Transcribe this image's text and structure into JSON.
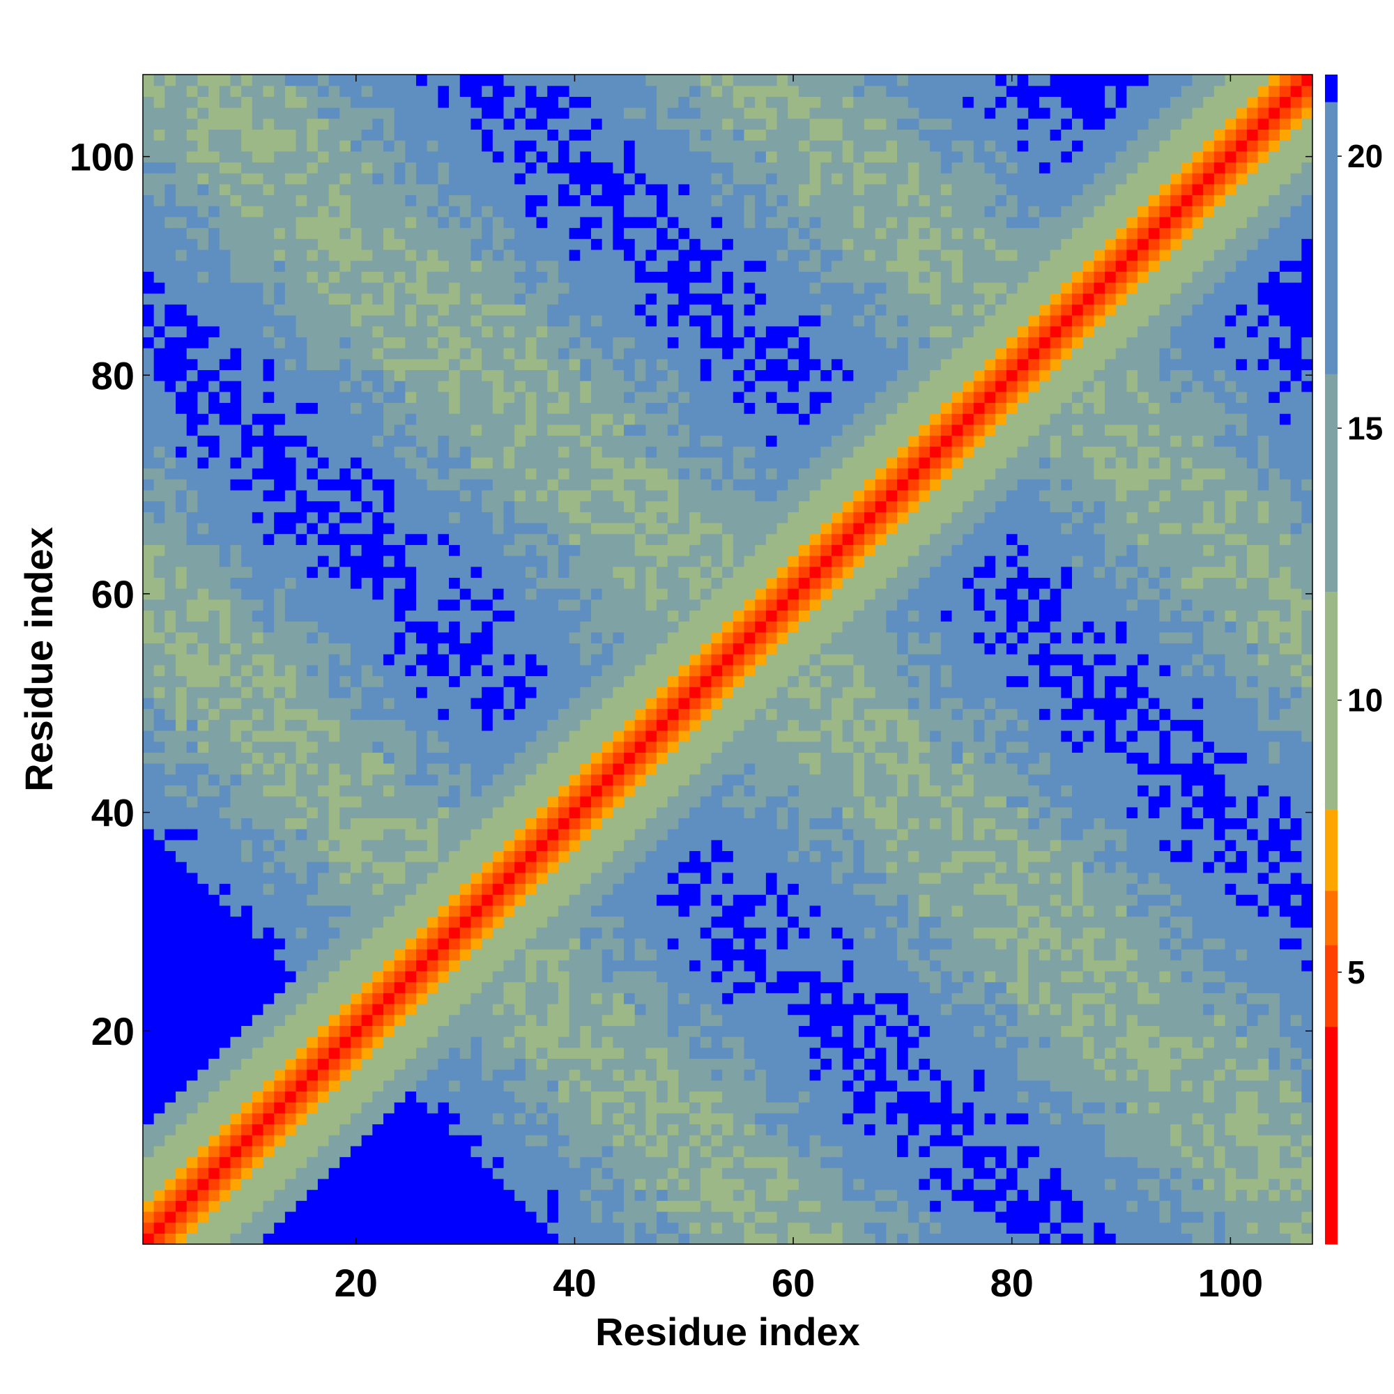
{
  "chart_data": {
    "type": "heatmap",
    "title": "",
    "xlabel": "Residue index",
    "ylabel": "Residue index",
    "n_residues": 107,
    "xlim": [
      1,
      107
    ],
    "ylim": [
      1,
      107
    ],
    "x_ticks": [
      20,
      40,
      60,
      80,
      100
    ],
    "y_ticks": [
      20,
      40,
      60,
      80,
      100
    ],
    "colorbar": {
      "range": [
        0,
        21.5
      ],
      "ticks": [
        5,
        10,
        15,
        20
      ],
      "bins": [
        {
          "min": 0,
          "max": 4,
          "color": "#ff0000"
        },
        {
          "min": 4,
          "max": 5.5,
          "color": "#ff4000"
        },
        {
          "min": 5.5,
          "max": 6.5,
          "color": "#ff7000"
        },
        {
          "min": 6.5,
          "max": 8,
          "color": "#ffa500"
        },
        {
          "min": 8,
          "max": 12,
          "color": "#9cb886"
        },
        {
          "min": 12,
          "max": 16,
          "color": "#7fa2a4"
        },
        {
          "min": 16,
          "max": 21,
          "color": "#5f8fc1"
        },
        {
          "min": 21,
          "max": 21.5,
          "color": "#0000ff"
        }
      ]
    },
    "description_of_values": "Pairwise residue distance map (Å). Diagonal band of short distances (red) widening to orange, sage and steel blue; two anti-diagonal contact lobes; blue where distance exceeds the color scale."
  }
}
